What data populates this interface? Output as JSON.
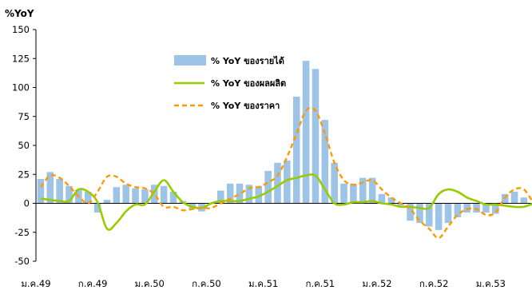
{
  "chart_data": {
    "type": "bar",
    "ylabel": "%YoY",
    "ylim": [
      -50,
      150
    ],
    "yticks": [
      150,
      125,
      100,
      75,
      50,
      25,
      0,
      -25,
      -50
    ],
    "xtick_labels": [
      "ม.ค.49",
      "ก.ค.49",
      "ม.ค.50",
      "ก.ค.50",
      "ม.ค.51",
      "ก.ค.51",
      "ม.ค.52",
      "ก.ค.52",
      "ม.ค.53"
    ],
    "legend_position": "upper-center",
    "grid": false,
    "categories": [
      "2549-01",
      "2549-02",
      "2549-03",
      "2549-04",
      "2549-05",
      "2549-06",
      "2549-07",
      "2549-08",
      "2549-09",
      "2549-10",
      "2549-11",
      "2549-12",
      "2550-01",
      "2550-02",
      "2550-03",
      "2550-04",
      "2550-05",
      "2550-06",
      "2550-07",
      "2550-08",
      "2550-09",
      "2550-10",
      "2550-11",
      "2550-12",
      "2551-01",
      "2551-02",
      "2551-03",
      "2551-04",
      "2551-05",
      "2551-06",
      "2551-07",
      "2551-08",
      "2551-09",
      "2551-10",
      "2551-11",
      "2551-12",
      "2552-01",
      "2552-02",
      "2552-03",
      "2552-04",
      "2552-05",
      "2552-06",
      "2552-07",
      "2552-08",
      "2552-09",
      "2552-10",
      "2552-11",
      "2552-12",
      "2553-01",
      "2553-02",
      "2553-03",
      "2553-04",
      "2553-05"
    ],
    "series": [
      {
        "name": "% YoY ของรายได้",
        "kind": "bar",
        "color": "#9dc3e6",
        "values": [
          21,
          27,
          21,
          15,
          12,
          10,
          -8,
          3,
          14,
          16,
          13,
          12,
          16,
          15,
          10,
          2,
          -5,
          -7,
          0,
          11,
          17,
          17,
          16,
          15,
          28,
          35,
          37,
          92,
          123,
          116,
          72,
          35,
          17,
          17,
          22,
          22,
          8,
          5,
          -2,
          -15,
          -17,
          -20,
          -23,
          -17,
          -12,
          -8,
          -8,
          -8,
          -9,
          8,
          10,
          5,
          -2
        ]
      },
      {
        "name": "% YoY ของผลผลิต",
        "kind": "line",
        "color": "#99cc00",
        "values": [
          4,
          3,
          2,
          2,
          12,
          10,
          1,
          -22,
          -17,
          -7,
          -1,
          -1,
          10,
          20,
          10,
          1,
          -3,
          -4,
          0,
          2,
          2,
          2,
          4,
          6,
          10,
          15,
          20,
          22,
          24,
          24,
          12,
          0,
          -1,
          1,
          1,
          2,
          0,
          -1,
          -3,
          -3,
          -4,
          -4,
          8,
          12,
          10,
          5,
          2,
          -1,
          -1,
          -2,
          -3,
          -3,
          0
        ]
      },
      {
        "name": "% YoY ของราคา",
        "kind": "dashed-line",
        "color": "#ff9900",
        "values": [
          14,
          24,
          22,
          15,
          6,
          0,
          10,
          23,
          23,
          17,
          14,
          13,
          8,
          -3,
          -3,
          -6,
          -5,
          -4,
          -4,
          0,
          4,
          8,
          13,
          14,
          18,
          24,
          40,
          60,
          80,
          80,
          60,
          35,
          20,
          16,
          18,
          20,
          12,
          5,
          0,
          -5,
          -15,
          -22,
          -30,
          -20,
          -10,
          -5,
          -5,
          -10,
          -8,
          5,
          12,
          12,
          0
        ]
      }
    ]
  }
}
